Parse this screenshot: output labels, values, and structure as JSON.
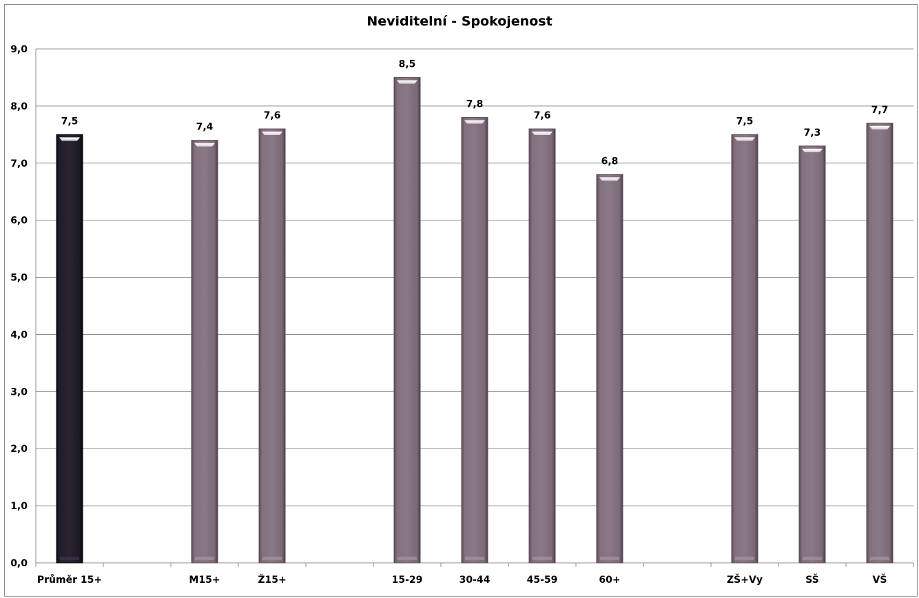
{
  "chart_data": {
    "type": "bar",
    "title": "Neviditelní - Spokojenost",
    "xlabel": "",
    "ylabel": "",
    "ylim": [
      0,
      9
    ],
    "yticks": [
      "0,0",
      "1,0",
      "2,0",
      "3,0",
      "4,0",
      "5,0",
      "6,0",
      "7,0",
      "8,0",
      "9,0"
    ],
    "grid": true,
    "legend": "none",
    "categories": [
      "Průměr 15+",
      "",
      "M15+",
      "Ž15+",
      "",
      "15-29",
      "30-44",
      "45-59",
      "60+",
      "",
      "ZŠ+Vy",
      "SŠ",
      "VŠ"
    ],
    "values": [
      7.5,
      null,
      7.4,
      7.6,
      null,
      8.5,
      7.8,
      7.6,
      6.8,
      null,
      7.5,
      7.3,
      7.7
    ],
    "data_labels": [
      "7,5",
      "",
      "7,4",
      "7,6",
      "",
      "8,5",
      "7,8",
      "7,6",
      "6,8",
      "",
      "7,5",
      "7,3",
      "7,7"
    ],
    "colors": {
      "highlight_bar": "#1f1a26",
      "bar": "#84717f",
      "grid": "#8c8c8c"
    }
  }
}
